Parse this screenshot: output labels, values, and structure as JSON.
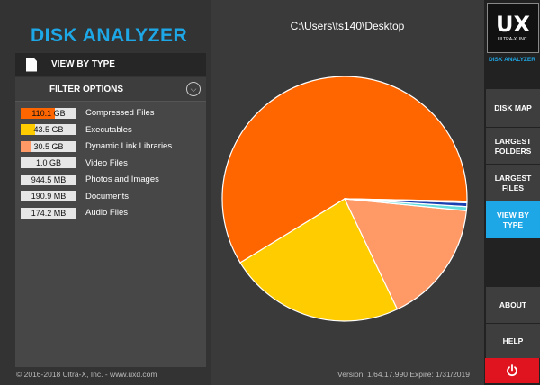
{
  "app": {
    "title": "DISK ANALYZER",
    "path": "C:\\Users\\ts140\\Desktop",
    "copyright": "© 2016-2018 Ultra-X, Inc. - www.uxd.com",
    "version": "Version: 1.64.17.990   Expire: 1/31/2019"
  },
  "panel": {
    "view_label": "VIEW BY TYPE",
    "filter_label": "FILTER OPTIONS"
  },
  "filters": [
    {
      "size": "110.1 GB",
      "name": "Compressed Files",
      "color": "#ff6600",
      "fill": 0.62
    },
    {
      "size": "43.5 GB",
      "name": "Executables",
      "color": "#ffcc00",
      "fill": 0.25
    },
    {
      "size": "30.5 GB",
      "name": "Dynamic Link Libraries",
      "color": "#ff9966",
      "fill": 0.17
    },
    {
      "size": "1.0 GB",
      "name": "Video Files",
      "color": "#e6e6e6",
      "fill": 0
    },
    {
      "size": "944.5 MB",
      "name": "Photos and Images",
      "color": "#e6e6e6",
      "fill": 0
    },
    {
      "size": "190.9 MB",
      "name": "Documents",
      "color": "#e6e6e6",
      "fill": 0
    },
    {
      "size": "174.2 MB",
      "name": "Audio Files",
      "color": "#e6e6e6",
      "fill": 0
    }
  ],
  "pie_slices": [
    {
      "label": "Compressed Files",
      "value": 110.1,
      "color": "#ff6600"
    },
    {
      "label": "Executables",
      "value": 43.5,
      "color": "#ffcc00"
    },
    {
      "label": "Dynamic Link Libraries",
      "value": 30.5,
      "color": "#ff9966"
    },
    {
      "label": "Video Files",
      "value": 1.0,
      "color": "#66dddd"
    },
    {
      "label": "Photos and Images",
      "value": 0.9445,
      "color": "#1a3fb0"
    },
    {
      "label": "Documents",
      "value": 0.1909,
      "color": "#ffffff"
    },
    {
      "label": "Audio Files",
      "value": 0.1742,
      "color": "#9999ff"
    }
  ],
  "nav": {
    "logo_text": "UX",
    "logo_sub": "ULTRA-X, INC.",
    "app_name": "DISK ANALYZER",
    "disk_map": "DISK MAP",
    "largest_folders": "LARGEST FOLDERS",
    "largest_files": "LARGEST FILES",
    "view_by_type": "VIEW BY TYPE",
    "about": "ABOUT",
    "help": "HELP"
  },
  "colors": {
    "accent": "#1ea7e6",
    "power": "#e0141e"
  }
}
